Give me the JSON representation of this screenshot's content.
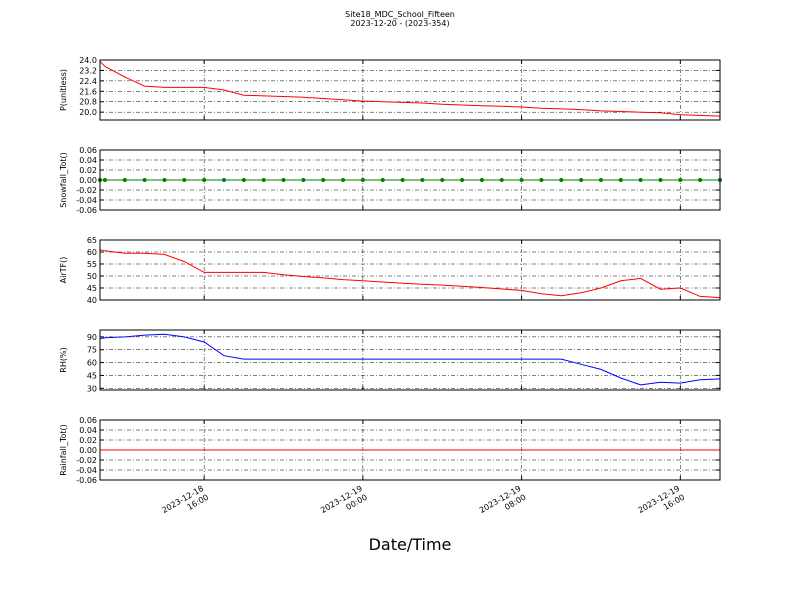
{
  "chart_data": {
    "title": "Site18_MDC_School_Fifteen",
    "subtitle": "2023-12-20 - (2023-354)",
    "xlabel": "Date/Time",
    "x": [
      "2023-12-18 10:45",
      "2023-12-18 11:00",
      "2023-12-18 12:00",
      "2023-12-18 13:00",
      "2023-12-18 14:00",
      "2023-12-18 15:00",
      "2023-12-18 16:00",
      "2023-12-18 17:00",
      "2023-12-18 18:00",
      "2023-12-18 19:00",
      "2023-12-18 20:00",
      "2023-12-18 21:00",
      "2023-12-18 22:00",
      "2023-12-18 23:00",
      "2023-12-19 00:00",
      "2023-12-19 01:00",
      "2023-12-19 02:00",
      "2023-12-19 03:00",
      "2023-12-19 04:00",
      "2023-12-19 05:00",
      "2023-12-19 06:00",
      "2023-12-19 07:00",
      "2023-12-19 08:00",
      "2023-12-19 09:00",
      "2023-12-19 10:00",
      "2023-12-19 11:00",
      "2023-12-19 12:00",
      "2023-12-19 13:00",
      "2023-12-19 14:00",
      "2023-12-19 15:00",
      "2023-12-19 16:00",
      "2023-12-19 17:00",
      "2023-12-19 18:00"
    ],
    "xlim": [
      "2023-12-18 10:45",
      "2023-12-19 18:00"
    ],
    "xticks": [
      {
        "value": "2023-12-18 16:00",
        "label": [
          "2023-12-18",
          "16:00"
        ]
      },
      {
        "value": "2023-12-19 00:00",
        "label": [
          "2023-12-19",
          "00:00"
        ]
      },
      {
        "value": "2023-12-19 08:00",
        "label": [
          "2023-12-19",
          "08:00"
        ]
      },
      {
        "value": "2023-12-19 16:00",
        "label": [
          "2023-12-19",
          "16:00"
        ]
      }
    ],
    "grid": true,
    "panels": [
      {
        "type": "line",
        "ylabel": "P(unitless)",
        "ylim": [
          19.4,
          24.0
        ],
        "yticks": [
          {
            "value": 20,
            "label": "20.0"
          },
          {
            "value": 20.8,
            "label": "20.8"
          },
          {
            "value": 21.6,
            "label": "21.6"
          },
          {
            "value": 22.4,
            "label": "22.4"
          },
          {
            "value": 23.2,
            "label": "23.2"
          },
          {
            "value": 24,
            "label": "24.0"
          }
        ],
        "series": [
          {
            "color": "#ff0000",
            "markers": false,
            "values": [
              23.9,
              23.5,
              22.7,
              22.0,
              21.9,
              21.9,
              21.9,
              21.7,
              21.3,
              21.25,
              21.2,
              21.15,
              21.05,
              20.95,
              20.85,
              20.8,
              20.75,
              20.7,
              20.6,
              20.55,
              20.5,
              20.45,
              20.4,
              20.3,
              20.25,
              20.2,
              20.1,
              20.05,
              20.0,
              19.95,
              19.8,
              19.75,
              19.7
            ]
          }
        ]
      },
      {
        "type": "line",
        "ylabel": "Snowfall_Tot()",
        "ylim": [
          -0.06,
          0.06
        ],
        "yticks": [
          -0.06,
          -0.04,
          -0.02,
          {
            "value": 0,
            "label": "0.00"
          },
          0.02,
          0.04,
          0.06
        ],
        "series": [
          {
            "color": "#008000",
            "markers": true,
            "values": [
              0,
              0,
              0,
              0,
              0,
              0,
              0,
              0,
              0,
              0,
              0,
              0,
              0,
              0,
              0,
              0,
              0,
              0,
              0,
              0,
              0,
              0,
              0,
              0,
              0,
              0,
              0,
              0,
              0,
              0,
              0,
              0,
              0
            ]
          }
        ]
      },
      {
        "type": "line",
        "ylabel": "AirTF()",
        "ylim": [
          40,
          65
        ],
        "yticks": [
          40,
          45,
          50,
          55,
          60,
          65
        ],
        "series": [
          {
            "color": "#ff0000",
            "markers": false,
            "values": [
              61,
              60.5,
              59.5,
              59.5,
              59,
              56,
              51.5,
              51.5,
              51.5,
              51.5,
              50.5,
              49.8,
              49.2,
              48.5,
              48,
              47.5,
              47,
              46.6,
              46.2,
              45.7,
              45.2,
              44.6,
              44,
              42.6,
              41.8,
              43,
              45,
              48,
              49,
              44.5,
              45,
              41.5,
              41
            ]
          }
        ]
      },
      {
        "type": "line",
        "ylabel": "RH(%)",
        "ylim": [
          28,
          98
        ],
        "yticks": [
          30,
          45,
          60,
          75,
          90
        ],
        "series": [
          {
            "color": "#0000ff",
            "markers": false,
            "values": [
              88,
              89,
              90,
              92,
              93,
              90,
              84,
              68,
              64,
              64,
              64,
              64,
              64,
              64,
              64,
              64,
              64,
              64,
              64,
              64,
              64,
              64,
              64,
              64,
              64,
              58,
              52,
              42,
              34,
              37,
              36,
              40,
              41
            ]
          }
        ]
      },
      {
        "type": "line",
        "ylabel": "Rainfall_Tot()",
        "ylim": [
          -0.06,
          0.06
        ],
        "yticks": [
          -0.06,
          -0.04,
          -0.02,
          {
            "value": 0,
            "label": "0.00"
          },
          0.02,
          0.04,
          0.06
        ],
        "series": [
          {
            "color": "#ff0000",
            "markers": false,
            "values": [
              0,
              0,
              0,
              0,
              0,
              0,
              0,
              0,
              0,
              0,
              0,
              0,
              0,
              0,
              0,
              0,
              0,
              0,
              0,
              0,
              0,
              0,
              0,
              0,
              0,
              0,
              0,
              0,
              0,
              0,
              0,
              0,
              0
            ]
          }
        ]
      }
    ]
  }
}
